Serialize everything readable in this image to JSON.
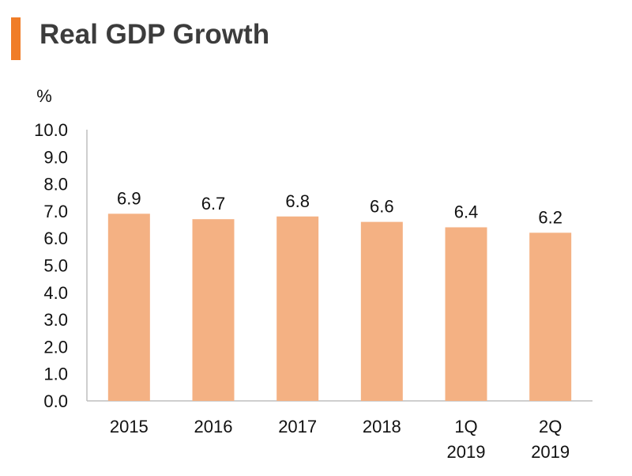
{
  "colors": {
    "accent": "#f07d28",
    "bar": "#f4b183",
    "axis": "#bfbfbf"
  },
  "chart_data": {
    "type": "bar",
    "title": "Real GDP Growth",
    "ylabel": "%",
    "xlabel": "",
    "ylim": [
      0,
      10
    ],
    "ytick_labels": [
      "0.0",
      "1.0",
      "2.0",
      "3.0",
      "4.0",
      "5.0",
      "6.0",
      "7.0",
      "8.0",
      "9.0",
      "10.0"
    ],
    "categories": [
      [
        "2015"
      ],
      [
        "2016"
      ],
      [
        "2017"
      ],
      [
        "2018"
      ],
      [
        "1Q",
        "2019"
      ],
      [
        "2Q",
        "2019"
      ]
    ],
    "values": [
      6.9,
      6.7,
      6.8,
      6.6,
      6.4,
      6.2
    ],
    "data_labels": [
      "6.9",
      "6.7",
      "6.8",
      "6.6",
      "6.4",
      "6.2"
    ],
    "grid": false
  }
}
